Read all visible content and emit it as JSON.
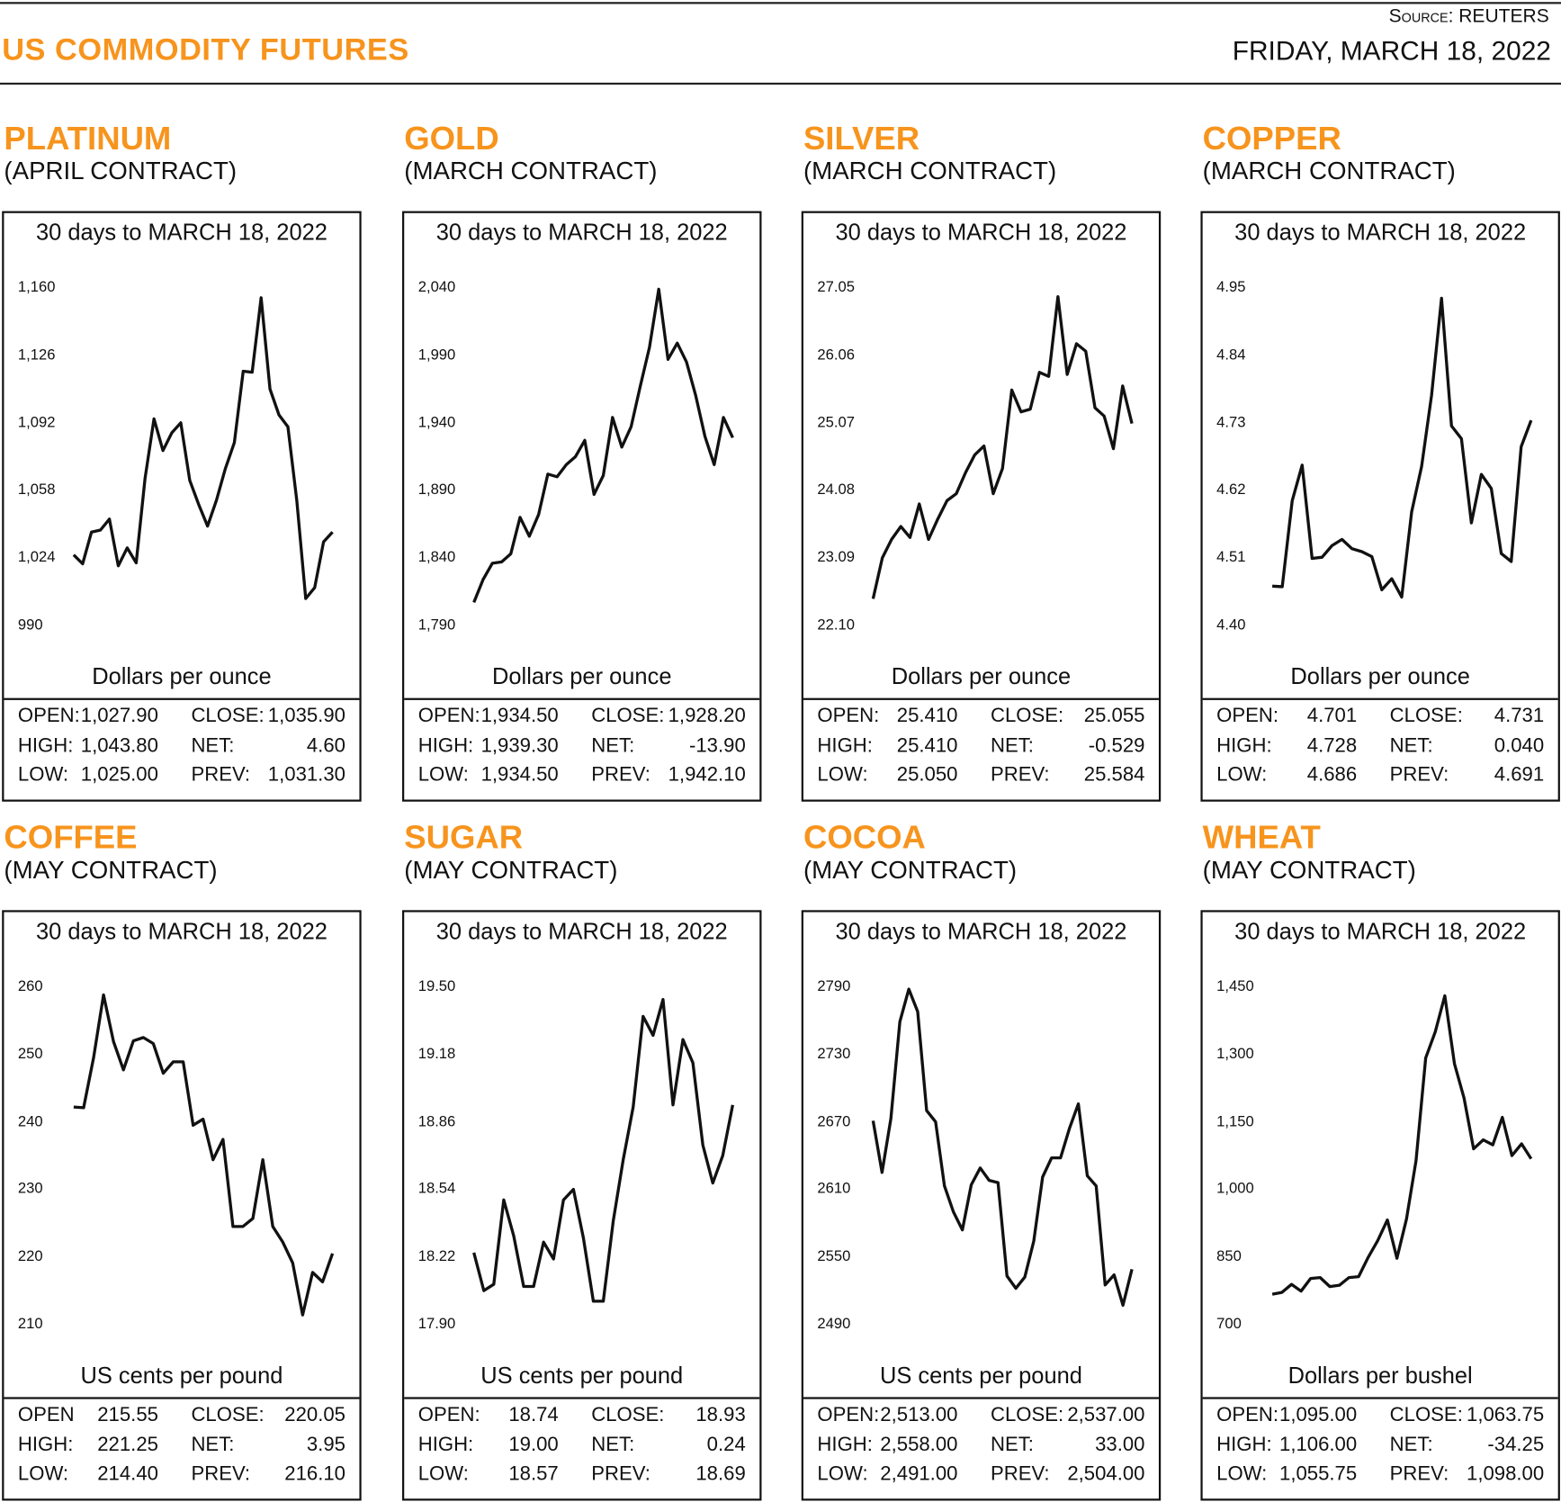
{
  "header": {
    "title": "US COMMODITY FUTURES",
    "source": "Source: REUTERS",
    "date": "FRIDAY, MARCH 18, 2022"
  },
  "colors": {
    "accent": "#f7941d",
    "line": "#111111"
  },
  "chart_data": [
    {
      "type": "line",
      "name": "PLATINUM",
      "contract": "(APRIL CONTRACT)",
      "title": "30 days to MARCH 18, 2022",
      "ylabel": "Dollars per ounce",
      "yticks": [
        "1,160",
        "1,126",
        "1,092",
        "1,058",
        "1,024",
        "990"
      ],
      "ylim": [
        990,
        1160
      ],
      "values": [
        1025.5,
        1021,
        1037,
        1038,
        1043.5,
        1020,
        1029,
        1021.5,
        1064,
        1094,
        1078,
        1087,
        1092,
        1063,
        1051,
        1040,
        1053,
        1069,
        1082,
        1118,
        1117.5,
        1155,
        1109,
        1096,
        1090,
        1053,
        1003.5,
        1009,
        1032,
        1037
      ],
      "stats": {
        "open_label": "OPEN:",
        "open": "1,027.90",
        "close_label": "CLOSE:",
        "close": "1,035.90",
        "high_label": "HIGH:",
        "high": "1,043.80",
        "net_label": "NET:",
        "net": "4.60",
        "low_label": "LOW:",
        "low": "1,025.00",
        "prev_label": "PREV:",
        "prev": "1,031.30"
      }
    },
    {
      "type": "line",
      "name": "GOLD",
      "contract": "(MARCH CONTRACT)",
      "title": "30 days to MARCH 18, 2022",
      "ylabel": "Dollars per ounce",
      "yticks": [
        "2,040",
        "1,990",
        "1,940",
        "1,890",
        "1,840",
        "1,790"
      ],
      "ylim": [
        1790,
        2040
      ],
      "values": [
        1807,
        1824,
        1836,
        1837,
        1843,
        1870,
        1856,
        1872,
        1902,
        1900,
        1909,
        1915,
        1927,
        1887,
        1901,
        1944,
        1922,
        1937,
        1967,
        1996,
        2039,
        1987,
        1999,
        1985,
        1960,
        1930,
        1909,
        1944,
        1929
      ],
      "stats": {
        "open_label": "OPEN:",
        "open": "1,934.50",
        "close_label": "CLOSE:",
        "close": "1,928.20",
        "high_label": "HIGH:",
        "high": "1,939.30",
        "net_label": "NET:",
        "net": "-13.90",
        "low_label": "LOW:",
        "low": "1,934.50",
        "prev_label": "PREV:",
        "prev": "1,942.10"
      }
    },
    {
      "type": "line",
      "name": "SILVER",
      "contract": "(MARCH CONTRACT)",
      "title": "30 days to MARCH 18, 2022",
      "ylabel": "Dollars per ounce",
      "yticks": [
        "27.05",
        "26.06",
        "25.07",
        "24.08",
        "23.09",
        "22.10"
      ],
      "ylim": [
        22.1,
        27.05
      ],
      "values": [
        22.49,
        23.09,
        23.36,
        23.55,
        23.39,
        23.88,
        23.36,
        23.66,
        23.93,
        24.03,
        24.34,
        24.6,
        24.73,
        24.03,
        24.4,
        25.55,
        25.23,
        25.27,
        25.81,
        25.75,
        26.92,
        25.78,
        26.23,
        26.12,
        25.29,
        25.17,
        24.69,
        25.61,
        25.06
      ],
      "stats": {
        "open_label": "OPEN:",
        "open": "25.410",
        "close_label": "CLOSE:",
        "close": "25.055",
        "high_label": "HIGH:",
        "high": "25.410",
        "net_label": "NET:",
        "net": "-0.529",
        "low_label": "LOW:",
        "low": "25.050",
        "prev_label": "PREV:",
        "prev": "25.584"
      }
    },
    {
      "type": "line",
      "name": "COPPER",
      "contract": "(MARCH CONTRACT)",
      "title": "30 days to MARCH 18, 2022",
      "ylabel": "Dollars per ounce",
      "yticks": [
        "4.95",
        "4.84",
        "4.73",
        "4.62",
        "4.51",
        "4.40"
      ],
      "ylim": [
        4.4,
        4.95
      ],
      "values": [
        4.464,
        4.463,
        4.603,
        4.661,
        4.509,
        4.511,
        4.53,
        4.54,
        4.525,
        4.52,
        4.512,
        4.458,
        4.476,
        4.446,
        4.585,
        4.659,
        4.775,
        4.933,
        4.725,
        4.704,
        4.567,
        4.646,
        4.623,
        4.517,
        4.504,
        4.691,
        4.734
      ],
      "stats": {
        "open_label": "OPEN:",
        "open": "4.701",
        "close_label": "CLOSE:",
        "close": "4.731",
        "high_label": "HIGH:",
        "high": "4.728",
        "net_label": "NET:",
        "net": "0.040",
        "low_label": "LOW:",
        "low": "4.686",
        "prev_label": "PREV:",
        "prev": "4.691"
      }
    },
    {
      "type": "line",
      "name": "COFFEE",
      "contract": "(MAY CONTRACT)",
      "title": "30 days to MARCH 18, 2022",
      "ylabel": "US cents per pound",
      "yticks": [
        "260",
        "250",
        "240",
        "230",
        "220",
        "210"
      ],
      "ylim": [
        210,
        260
      ],
      "values": [
        242.2,
        242.1,
        249.5,
        258.8,
        251.9,
        247.7,
        252.0,
        252.5,
        251.6,
        247.2,
        248.9,
        248.9,
        239.5,
        240.4,
        234.4,
        237.4,
        224.5,
        224.5,
        225.7,
        234.4,
        224.5,
        222.2,
        219.1,
        211.4,
        217.7,
        216.3,
        220.5
      ],
      "stats": {
        "open_label": "OPEN",
        "open": "215.55",
        "close_label": "CLOSE:",
        "close": "220.05",
        "high_label": "HIGH:",
        "high": "221.25",
        "net_label": "NET:",
        "net": "3.95",
        "low_label": "LOW:",
        "low": "214.40",
        "prev_label": "PREV:",
        "prev": "216.10"
      }
    },
    {
      "type": "line",
      "name": "SUGAR",
      "contract": "(MAY CONTRACT)",
      "title": "30 days to MARCH 18, 2022",
      "ylabel": "US cents per pound",
      "yticks": [
        "19.50",
        "19.18",
        "18.86",
        "18.54",
        "18.22",
        "17.90"
      ],
      "ylim": [
        17.9,
        19.5
      ],
      "values": [
        18.24,
        18.06,
        18.09,
        18.49,
        18.32,
        18.08,
        18.08,
        18.29,
        18.21,
        18.49,
        18.54,
        18.31,
        18.01,
        18.01,
        18.39,
        18.68,
        18.93,
        19.36,
        19.27,
        19.44,
        18.94,
        19.25,
        19.14,
        18.75,
        18.57,
        18.7,
        18.94
      ],
      "stats": {
        "open_label": "OPEN:",
        "open": "18.74",
        "close_label": "CLOSE:",
        "close": "18.93",
        "high_label": "HIGH:",
        "high": "19.00",
        "net_label": "NET:",
        "net": "0.24",
        "low_label": "LOW:",
        "low": "18.57",
        "prev_label": "PREV:",
        "prev": "18.69"
      }
    },
    {
      "type": "line",
      "name": "COCOA",
      "contract": "(MAY CONTRACT)",
      "title": "30 days to MARCH 18, 2022",
      "ylabel": "US cents per pound",
      "yticks": [
        "2790",
        "2730",
        "2670",
        "2610",
        "2550",
        "2490"
      ],
      "ylim": [
        2490,
        2790
      ],
      "values": [
        2671,
        2625,
        2673,
        2759,
        2788,
        2768,
        2680,
        2670,
        2613,
        2590,
        2574,
        2614,
        2629,
        2618,
        2616,
        2533,
        2522,
        2532,
        2564,
        2621,
        2638,
        2638,
        2664,
        2686,
        2622,
        2613,
        2525,
        2534,
        2507,
        2539
      ],
      "stats": {
        "open_label": "OPEN:",
        "open": "2,513.00",
        "close_label": "CLOSE:",
        "close": "2,537.00",
        "high_label": "HIGH:",
        "high": "2,558.00",
        "net_label": "NET:",
        "net": "33.00",
        "low_label": "LOW:",
        "low": "2,491.00",
        "prev_label": "PREV:",
        "prev": "2,504.00"
      }
    },
    {
      "type": "line",
      "name": "WHEAT",
      "contract": "(MAY CONTRACT)",
      "title": "30 days to MARCH 18, 2022",
      "ylabel": "Dollars per bushel",
      "yticks": [
        "1,450",
        "1,300",
        "1,150",
        "1,000",
        "850",
        "700"
      ],
      "ylim": [
        700,
        1450
      ],
      "values": [
        767,
        771,
        789,
        774,
        802,
        804,
        784,
        787,
        804,
        806,
        849,
        886,
        932,
        847,
        934,
        1064,
        1292,
        1350,
        1430,
        1279,
        1203,
        1090,
        1110,
        1099,
        1160,
        1075,
        1101,
        1068
      ],
      "stats": {
        "open_label": "OPEN:",
        "open": "1,095.00",
        "close_label": "CLOSE:",
        "close": "1,063.75",
        "high_label": "HIGH:",
        "high": "1,106.00",
        "net_label": "NET:",
        "net": "-34.25",
        "low_label": "LOW:",
        "low": "1,055.75",
        "prev_label": "PREV:",
        "prev": "1,098.00"
      }
    }
  ]
}
